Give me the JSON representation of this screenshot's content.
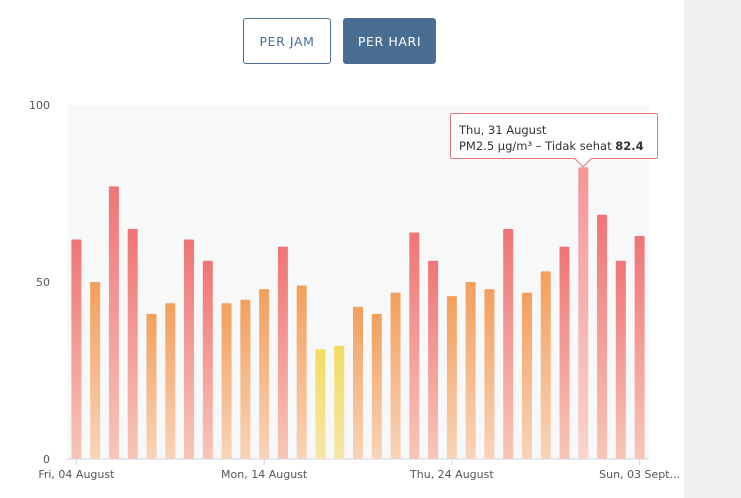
{
  "buttons": {
    "per_jam": "PER JAM",
    "per_hari": "PER HARI",
    "active": "per_hari"
  },
  "colors": {
    "accent": "#4a6d92",
    "unhealthy": "#f07476",
    "moderate": "#f3a160",
    "yellow": "#f2dd66"
  },
  "tooltip": {
    "date": "Thu, 31 August",
    "label": "PM2.5 µg/m³ – Tidak sehat",
    "value": "82.4"
  },
  "chart_data": {
    "type": "bar",
    "ylim": [
      0,
      100
    ],
    "yticks": [
      "0",
      "50",
      "100"
    ],
    "xtick_labels": [
      {
        "index": 0,
        "label": "Fri, 04 August"
      },
      {
        "index": 10,
        "label": "Mon, 14 August"
      },
      {
        "index": 20,
        "label": "Thu, 24 August"
      },
      {
        "index": 30,
        "label": "Sun, 03 Sept..."
      }
    ],
    "values": [
      62,
      50,
      77,
      65,
      41,
      44,
      62,
      56,
      44,
      45,
      48,
      60,
      49,
      31,
      32,
      43,
      41,
      47,
      64,
      56,
      46,
      50,
      48,
      65,
      47,
      53,
      60,
      82.4,
      69,
      56,
      63
    ],
    "categories": [
      "unhealthy",
      "moderate",
      "unhealthy",
      "unhealthy",
      "moderate",
      "moderate",
      "unhealthy",
      "unhealthy",
      "moderate",
      "moderate",
      "moderate",
      "unhealthy",
      "moderate",
      "yellow",
      "yellow",
      "moderate",
      "moderate",
      "moderate",
      "unhealthy",
      "unhealthy",
      "moderate",
      "moderate",
      "moderate",
      "unhealthy",
      "moderate",
      "moderate",
      "unhealthy",
      "unhealthy",
      "unhealthy",
      "unhealthy",
      "unhealthy"
    ],
    "highlight_index": 27,
    "grid": false
  }
}
